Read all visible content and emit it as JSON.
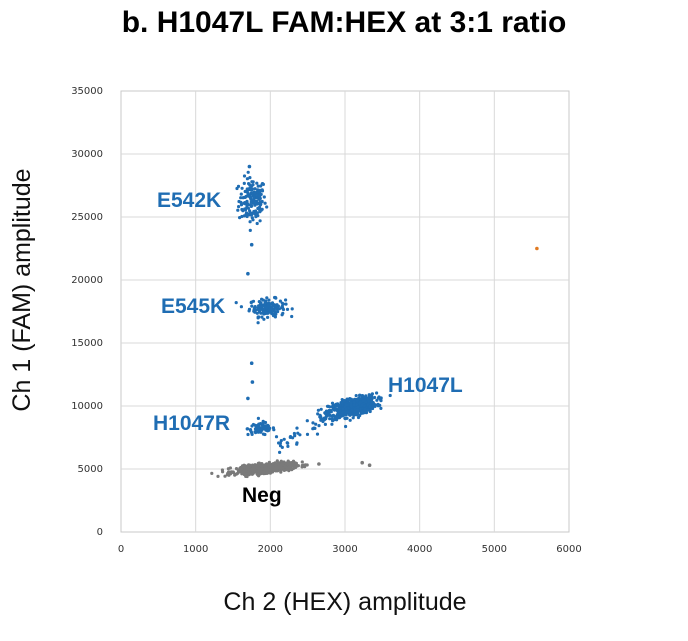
{
  "chart_data": {
    "type": "scatter",
    "title": "b. H1047L FAM:HEX at 3:1 ratio",
    "xlabel": "Ch 2 (HEX) amplitude",
    "ylabel": "Ch 1 (FAM) amplitude",
    "xlim": [
      0,
      6000
    ],
    "ylim": [
      0,
      35000
    ],
    "xticks": [
      "0",
      "1000",
      "2000",
      "3000",
      "4000",
      "5000",
      "6000"
    ],
    "yticks": [
      "0",
      "5000",
      "10000",
      "15000",
      "20000",
      "25000",
      "30000",
      "35000"
    ],
    "grid": true,
    "colors": {
      "positive": "#1f6db3",
      "negative": "#7a7a7a",
      "outlier": "#e07a22",
      "label": "#1f6db3",
      "neg_label": "#000000"
    },
    "clusters": [
      {
        "label": "E542K",
        "x": 1760,
        "y": 26300,
        "sx": 90,
        "sy": 900,
        "n": 160,
        "color": "#1f6db3"
      },
      {
        "label": "E545K",
        "x": 1960,
        "y": 17800,
        "sx": 120,
        "sy": 350,
        "n": 140,
        "color": "#1f6db3"
      },
      {
        "label": "H1047R",
        "x": 1880,
        "y": 8200,
        "sx": 90,
        "sy": 250,
        "n": 70,
        "color": "#1f6db3"
      },
      {
        "label": "H1047L",
        "x": 3100,
        "y": 9900,
        "sx": 160,
        "sy": 350,
        "n": 600,
        "color": "#1f6db3"
      },
      {
        "label": "Neg",
        "x": 1930,
        "y": 5050,
        "sx": 190,
        "sy": 170,
        "n": 700,
        "color": "#7a7a7a"
      }
    ],
    "outliers": [
      {
        "x": 5570,
        "y": 22500,
        "color": "#e07a22"
      },
      {
        "x": 1720,
        "y": 29000,
        "color": "#1f6db3"
      },
      {
        "x": 1750,
        "y": 22800,
        "color": "#1f6db3"
      },
      {
        "x": 1700,
        "y": 20500,
        "color": "#1f6db3"
      },
      {
        "x": 1750,
        "y": 13400,
        "color": "#1f6db3"
      },
      {
        "x": 1700,
        "y": 10600,
        "color": "#1f6db3"
      },
      {
        "x": 1760,
        "y": 11900,
        "color": "#1f6db3"
      },
      {
        "x": 3230,
        "y": 5500,
        "color": "#7a7a7a"
      },
      {
        "x": 3330,
        "y": 5300,
        "color": "#7a7a7a"
      },
      {
        "x": 2650,
        "y": 5400,
        "color": "#7a7a7a"
      }
    ]
  }
}
